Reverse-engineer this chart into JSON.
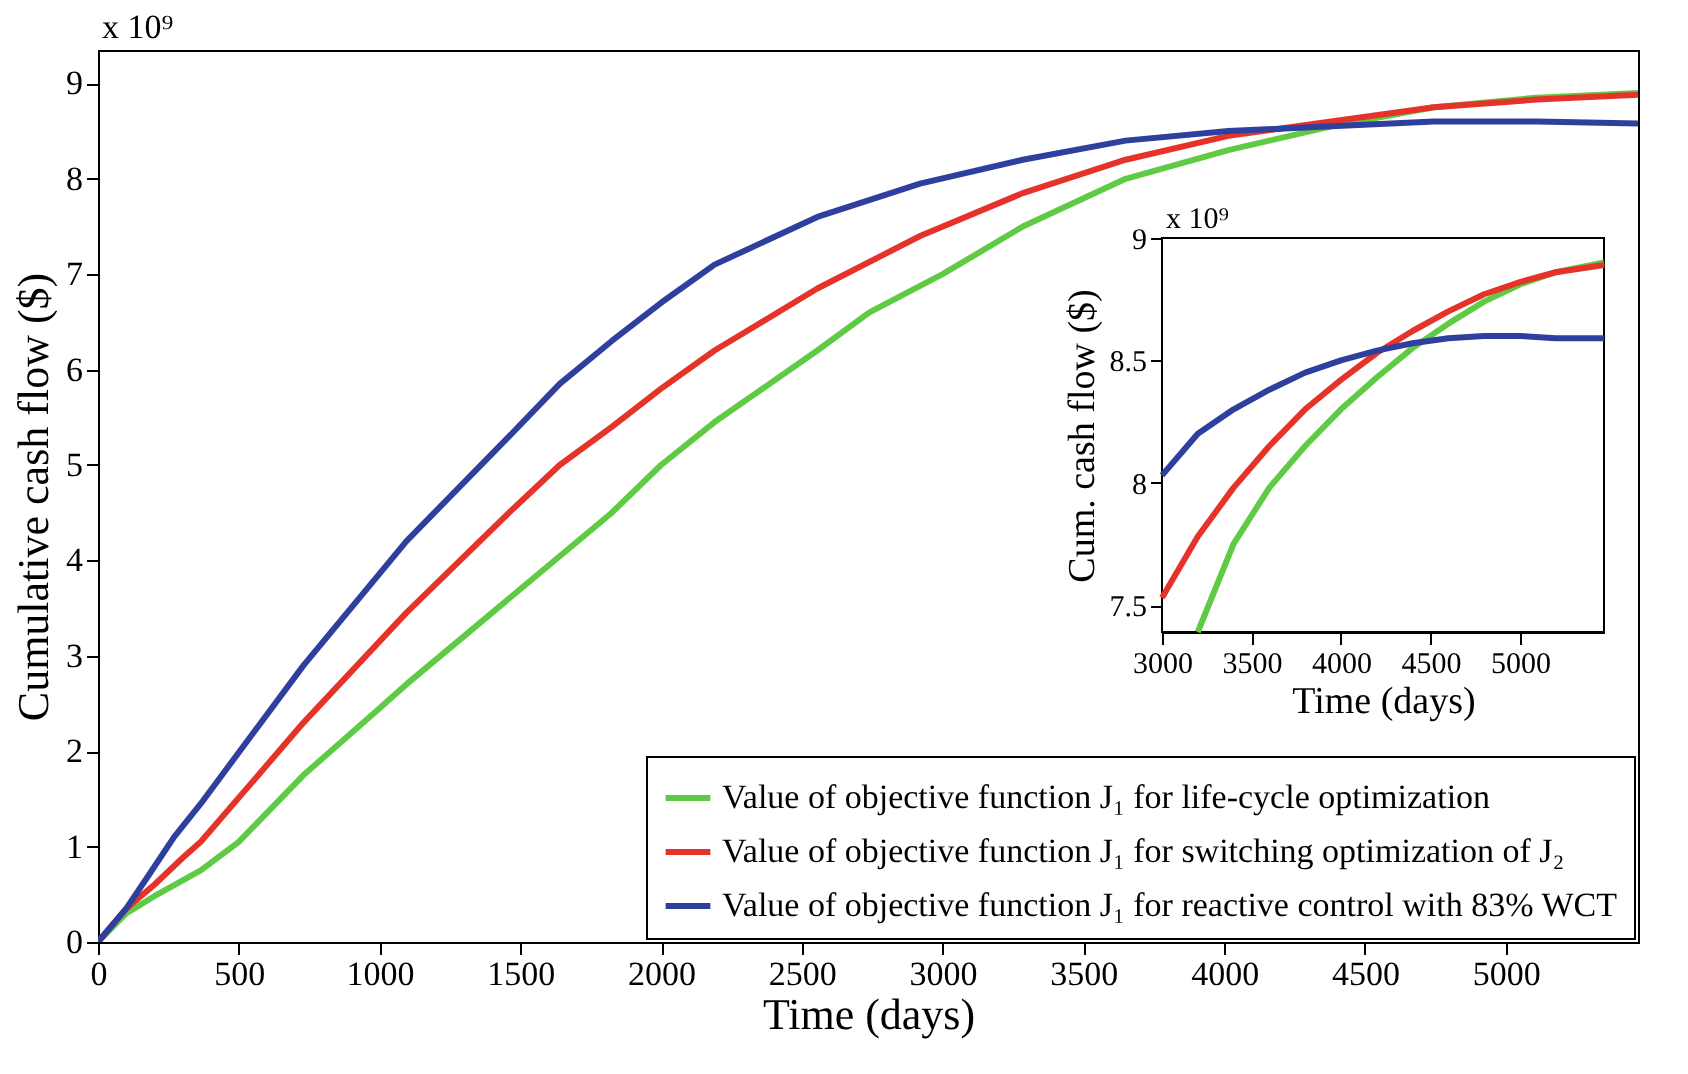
{
  "chart_data": [
    {
      "type": "line",
      "xlabel": "Time (days)",
      "ylabel": "Cumulative cash flow  ($)",
      "annotations": [
        "x 10⁹"
      ],
      "xlim": [
        0,
        5470
      ],
      "ylim": [
        0,
        9.35
      ],
      "xticks": [
        0,
        500,
        1000,
        1500,
        2000,
        2500,
        3000,
        3500,
        4000,
        4500,
        5000
      ],
      "yticks": [
        0,
        1,
        2,
        3,
        4,
        5,
        6,
        7,
        8,
        9
      ],
      "legend": "bottom right",
      "series": [
        {
          "name": "Value of objective function J₁ for life-cycle optimization",
          "color": "#5fcb44",
          "x": [
            0,
            100,
            200,
            365,
            500,
            730,
            1000,
            1095,
            1460,
            1825,
            2000,
            2190,
            2555,
            2740,
            3000,
            3285,
            3650,
            4015,
            4380,
            4745,
            5110,
            5470
          ],
          "values": [
            0,
            0.3,
            0.48,
            0.75,
            1.05,
            1.75,
            2.45,
            2.7,
            3.6,
            4.5,
            5.0,
            5.45,
            6.2,
            6.6,
            7.0,
            7.5,
            8.0,
            8.3,
            8.55,
            8.75,
            8.85,
            8.9
          ]
        },
        {
          "name": "Value of objective function J₁ for switching optimization of J₂",
          "color": "#e5332a",
          "x": [
            0,
            100,
            200,
            300,
            365,
            730,
            1095,
            1460,
            1640,
            1825,
            2000,
            2190,
            2555,
            2920,
            3285,
            3650,
            4015,
            4380,
            4745,
            5110,
            5470
          ],
          "values": [
            0,
            0.35,
            0.6,
            0.88,
            1.05,
            2.3,
            3.45,
            4.5,
            5.0,
            5.4,
            5.8,
            6.2,
            6.85,
            7.4,
            7.85,
            8.2,
            8.45,
            8.6,
            8.75,
            8.83,
            8.88
          ]
        },
        {
          "name": "Value of objective function J₁ for reactive control with 83% WCT",
          "color": "#2e3f9e",
          "x": [
            0,
            100,
            180,
            270,
            365,
            730,
            1095,
            1460,
            1640,
            1825,
            2000,
            2190,
            2555,
            2920,
            3285,
            3650,
            4015,
            4380,
            4745,
            5110,
            5470
          ],
          "values": [
            0,
            0.35,
            0.7,
            1.1,
            1.45,
            2.9,
            4.2,
            5.3,
            5.85,
            6.3,
            6.7,
            7.1,
            7.6,
            7.95,
            8.2,
            8.4,
            8.5,
            8.55,
            8.6,
            8.6,
            8.58
          ]
        }
      ]
    },
    {
      "type": "line",
      "xlabel": "Time (days)",
      "ylabel": "Cum. cash flow ($)",
      "annotations": [
        "x 10⁹"
      ],
      "xlim": [
        3000,
        5470
      ],
      "ylim": [
        7.39,
        9
      ],
      "xticks": [
        3000,
        3500,
        4000,
        4500,
        5000
      ],
      "yticks": [
        7.5,
        8,
        8.5,
        9
      ],
      "series": [
        {
          "color": "#5fcb44",
          "x": [
            3200,
            3400,
            3600,
            3800,
            4000,
            4200,
            4400,
            4600,
            4800,
            5000,
            5200,
            5470
          ],
          "values": [
            7.39,
            7.75,
            7.98,
            8.15,
            8.3,
            8.43,
            8.55,
            8.65,
            8.74,
            8.81,
            8.86,
            8.9
          ]
        },
        {
          "color": "#e5332a",
          "x": [
            3000,
            3200,
            3400,
            3600,
            3800,
            4000,
            4200,
            4400,
            4600,
            4800,
            5000,
            5200,
            5470
          ],
          "values": [
            7.53,
            7.78,
            7.98,
            8.15,
            8.3,
            8.42,
            8.53,
            8.62,
            8.7,
            8.77,
            8.82,
            8.86,
            8.89
          ]
        },
        {
          "color": "#2e3f9e",
          "x": [
            3000,
            3200,
            3400,
            3600,
            3800,
            4000,
            4200,
            4400,
            4600,
            4800,
            5000,
            5200,
            5470
          ],
          "values": [
            8.03,
            8.2,
            8.3,
            8.38,
            8.45,
            8.5,
            8.54,
            8.57,
            8.59,
            8.6,
            8.6,
            8.59,
            8.59
          ]
        }
      ]
    }
  ]
}
